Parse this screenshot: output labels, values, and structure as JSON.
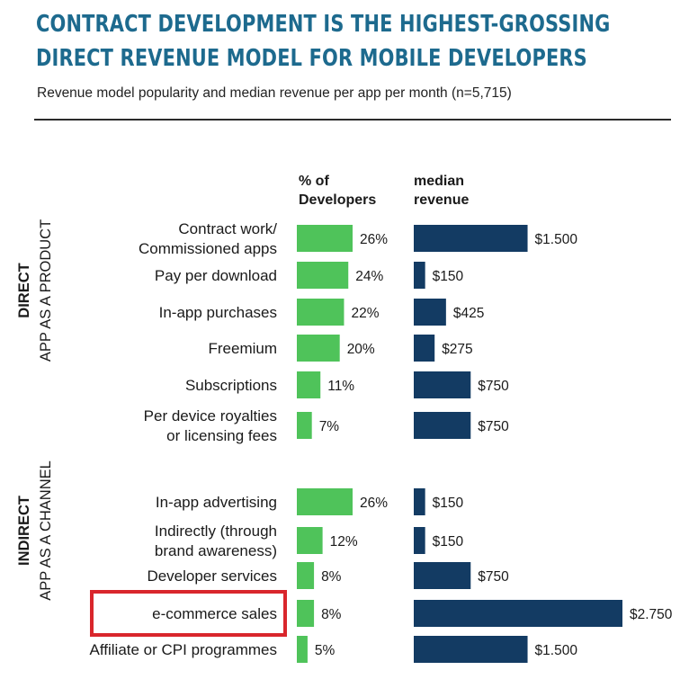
{
  "title": "CONTRACT DEVELOPMENT IS THE HIGHEST-GROSSING DIRECT REVENUE MODEL FOR MOBILE DEVELOPERS",
  "subtitle": "Revenue model popularity and median revenue per app per month (n=5,715)",
  "columns": {
    "pct_header": [
      "% of",
      "Developers"
    ],
    "rev_header": [
      "median",
      "revenue"
    ]
  },
  "groups": [
    {
      "name": "DIRECT",
      "sub": "APP AS A PRODUCT"
    },
    {
      "name": "INDIRECT",
      "sub": "APP AS A CHANNEL"
    }
  ],
  "colors": {
    "pct_bar": "#4fc35a",
    "rev_bar": "#133b63",
    "title": "#1d6a8e",
    "highlight": "#d9262c"
  },
  "highlighted_category": "e-commerce sales",
  "chart_data": {
    "type": "bar",
    "title": "CONTRACT DEVELOPMENT IS THE HIGHEST-GROSSING DIRECT REVENUE MODEL FOR MOBILE DEVELOPERS",
    "subtitle": "Revenue model popularity and median revenue per app per month (n=5,715)",
    "orientation": "horizontal",
    "categories": [
      [
        "Contract work/",
        "Commissioned apps"
      ],
      [
        "Pay per download"
      ],
      [
        "In-app purchases"
      ],
      [
        "Freemium"
      ],
      [
        "Subscriptions"
      ],
      [
        "Per device royalties",
        "or licensing fees"
      ],
      [
        "In-app advertising"
      ],
      [
        "Indirectly (through",
        "brand awareness)"
      ],
      [
        "Developer services"
      ],
      [
        "e-commerce sales"
      ],
      [
        "Affiliate or CPI programmes"
      ]
    ],
    "category_groups": [
      "DIRECT",
      "DIRECT",
      "DIRECT",
      "DIRECT",
      "DIRECT",
      "DIRECT",
      "INDIRECT",
      "INDIRECT",
      "INDIRECT",
      "INDIRECT",
      "INDIRECT"
    ],
    "series": [
      {
        "name": "% of Developers",
        "values": [
          26,
          24,
          22,
          20,
          11,
          7,
          26,
          12,
          8,
          8,
          5
        ],
        "labels": [
          "26%",
          "24%",
          "22%",
          "20%",
          "11%",
          "7%",
          "26%",
          "12%",
          "8%",
          "8%",
          "5%"
        ]
      },
      {
        "name": "median revenue",
        "values": [
          1500,
          150,
          425,
          275,
          750,
          750,
          150,
          150,
          750,
          2750,
          1500
        ],
        "labels": [
          "$1.500",
          "$150",
          "$425",
          "$275",
          "$750",
          "$750",
          "$150",
          "$150",
          "$750",
          "$2.750",
          "$1.500"
        ]
      }
    ]
  }
}
